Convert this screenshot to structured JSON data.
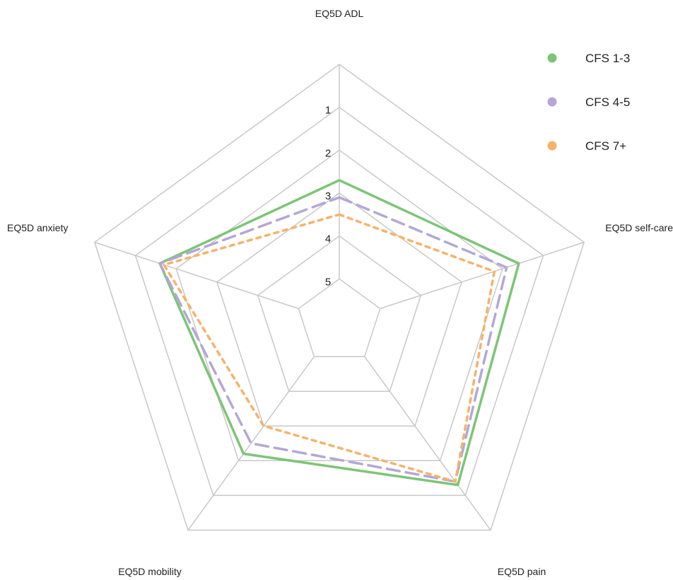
{
  "chart_data": {
    "type": "radar",
    "axes": [
      "EQ5D ADL",
      "EQ5D self-care",
      "EQ5D pain",
      "EQ5D mobility",
      "EQ5D anxiety"
    ],
    "scale": {
      "outer": 0,
      "center": 6,
      "ticks": [
        "1",
        "2",
        "3",
        "4",
        "5"
      ],
      "tick_values": [
        1,
        2,
        3,
        4,
        5
      ]
    },
    "series": [
      {
        "name": "CFS 1-3",
        "color": "#7cc576",
        "dash": "solid",
        "values": [
          2.7,
          1.6,
          1.3,
          2.2,
          1.6
        ]
      },
      {
        "name": "CFS 4-5",
        "color": "#b4a7d6",
        "dash": "dashed",
        "values": [
          3.1,
          1.9,
          1.4,
          2.5,
          1.6
        ]
      },
      {
        "name": "CFS 7+",
        "color": "#f6b26b",
        "dash": "dotted",
        "values": [
          3.5,
          2.2,
          1.4,
          3.0,
          1.7
        ]
      }
    ],
    "legend_position": "top-right",
    "grid": true
  }
}
